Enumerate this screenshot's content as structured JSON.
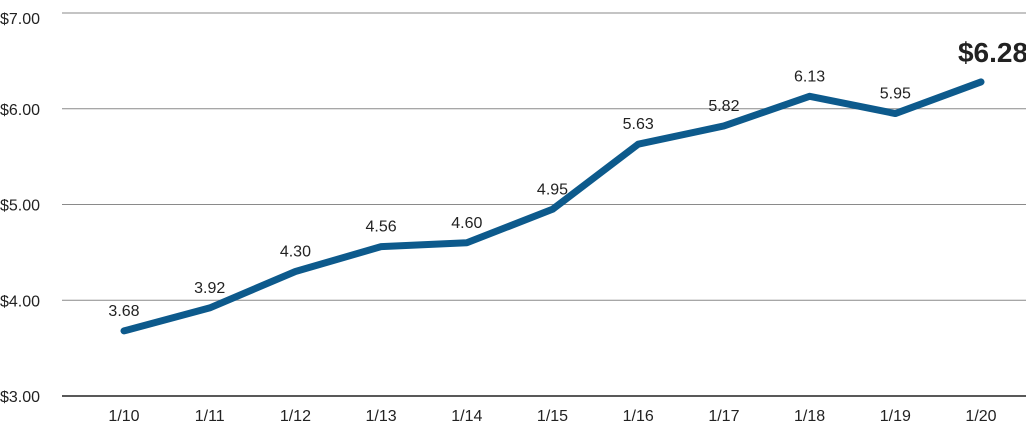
{
  "chart_data": {
    "type": "line",
    "categories": [
      "1/10",
      "1/11",
      "1/12",
      "1/13",
      "1/14",
      "1/15",
      "1/16",
      "1/17",
      "1/18",
      "1/19",
      "1/20"
    ],
    "series": [
      {
        "values": [
          3.68,
          3.92,
          4.3,
          4.56,
          4.6,
          4.95,
          5.63,
          5.82,
          6.13,
          5.95,
          6.28
        ]
      }
    ],
    "data_labels": [
      "3.68",
      "3.92",
      "4.30",
      "4.56",
      "4.60",
      "4.95",
      "5.63",
      "5.82",
      "6.13",
      "5.95",
      "$6.28"
    ],
    "y_ticks": [
      3,
      4,
      5,
      6,
      7
    ],
    "y_tick_labels": [
      "$3.00",
      "$4.00",
      "$5.00",
      "$6.00",
      "$7.00"
    ],
    "ylim": [
      3,
      7
    ],
    "grid": true,
    "legend": "none",
    "title": "",
    "xlabel": "",
    "ylabel": "",
    "colors": {
      "line": "#0d5a8c",
      "grid": "#8a8a8a",
      "text": "#222222"
    }
  }
}
